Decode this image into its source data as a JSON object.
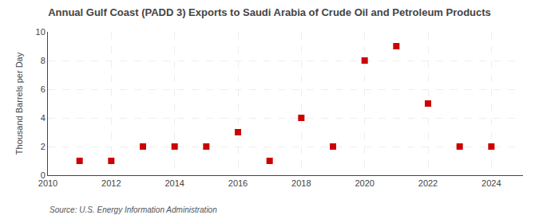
{
  "chart_data": {
    "type": "scatter",
    "title": "Annual Gulf Coast (PADD 3) Exports to Saudi Arabia of Crude Oil and Petroleum Products",
    "ylabel": "Thousand Barrels per Day",
    "annotation": "Source: U.S. Energy Information Administration",
    "x": [
      2011,
      2012,
      2013,
      2014,
      2015,
      2016,
      2017,
      2018,
      2019,
      2020,
      2021,
      2022,
      2023,
      2024
    ],
    "values": [
      1,
      1,
      2,
      2,
      2,
      3,
      1,
      4,
      2,
      8,
      9,
      5,
      2,
      2
    ],
    "color": "#cc0000",
    "marker": "square",
    "xlim": [
      2010,
      2025
    ],
    "ylim": [
      0,
      10
    ],
    "xticks": [
      2010,
      2012,
      2014,
      2016,
      2018,
      2020,
      2022,
      2024
    ],
    "yticks": [
      0,
      2,
      4,
      6,
      8,
      10
    ],
    "grid": true
  }
}
